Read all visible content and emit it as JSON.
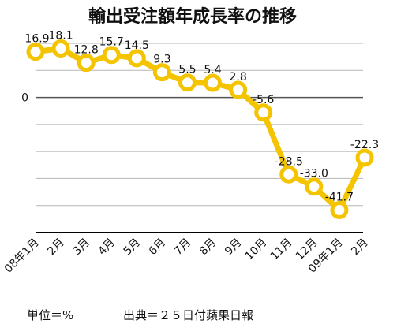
{
  "chart_data": {
    "type": "line",
    "title": "輸出受注額年成長率の推移",
    "categories": [
      "08年1月",
      "2月",
      "3月",
      "4月",
      "5月",
      "6月",
      "7月",
      "8月",
      "9月",
      "10月",
      "11月",
      "12月",
      "09年1月",
      "2月"
    ],
    "series": [
      {
        "values": [
          16.9,
          18.1,
          12.8,
          15.7,
          14.5,
          9.3,
          5.5,
          5.4,
          2.8,
          -5.6,
          -28.5,
          -33.0,
          -41.7,
          -22.3
        ]
      }
    ],
    "data_labels": [
      "16.9",
      "18.1",
      "12.8",
      "15.7",
      "14.5",
      "9.3",
      "5.5",
      "5.4",
      "2.8",
      "-5.6",
      "-28.5",
      "-33.0",
      "-41.7",
      "-22.3"
    ],
    "y_tick_labels": [
      "0"
    ],
    "ylim": [
      -50,
      20
    ],
    "grid": true,
    "color": "#f5c400",
    "unit_note": "単位＝%",
    "source_note": "出典＝２５日付蘋果日報"
  }
}
